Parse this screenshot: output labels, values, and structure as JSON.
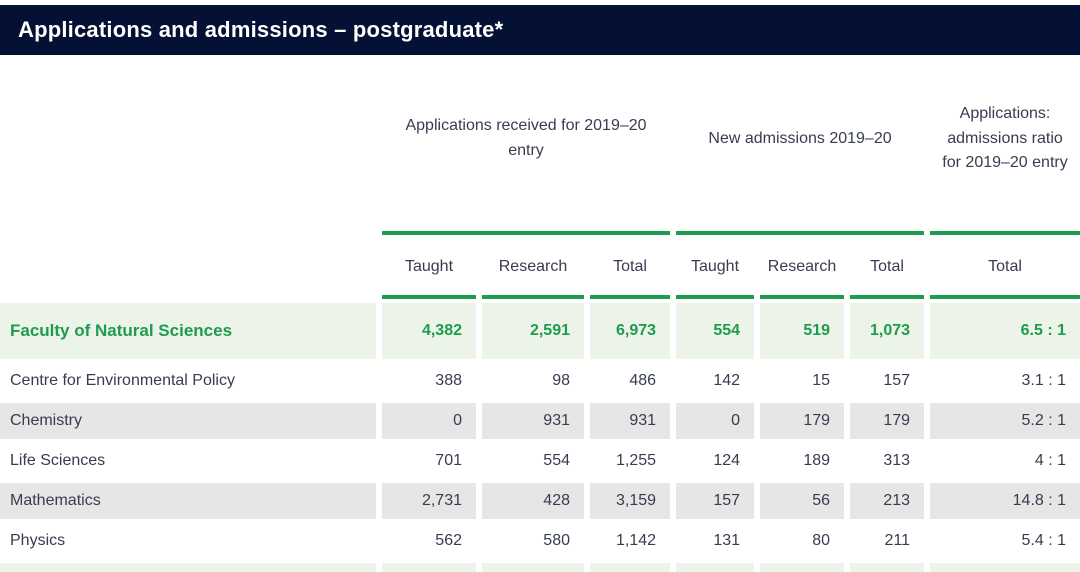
{
  "title": "Applications and admissions – postgraduate*",
  "colors": {
    "navy": "#051134",
    "green": "#1e9c4d",
    "light_green": "#ecf3e9",
    "gray_bg": "#e6e6e6",
    "text_dark": "#373d4f",
    "title_text": "#ffffff"
  },
  "table": {
    "col_groups": [
      {
        "label": "Applications received for 2019–20 entry",
        "span": 3
      },
      {
        "label": "New admissions 2019–20",
        "span": 3
      },
      {
        "label": "Applications: admissions ratio for 2019–20 entry",
        "span": 1
      }
    ],
    "sub_headers": [
      "Taught",
      "Research",
      "Total",
      "Taught",
      "Research",
      "Total",
      "Total"
    ],
    "rows": [
      {
        "label": "Faculty of Natural Sciences",
        "highlight": true,
        "values": [
          "4,382",
          "2,591",
          "6,973",
          "554",
          "519",
          "1,073",
          "6.5 : 1"
        ]
      },
      {
        "label": "Centre for Environmental Policy",
        "highlight": false,
        "values": [
          "388",
          "98",
          "486",
          "142",
          "15",
          "157",
          "3.1 : 1"
        ]
      },
      {
        "label": "Chemistry",
        "highlight": false,
        "values": [
          "0",
          "931",
          "931",
          "0",
          "179",
          "179",
          "5.2 : 1"
        ]
      },
      {
        "label": "Life Sciences",
        "highlight": false,
        "values": [
          "701",
          "554",
          "1,255",
          "124",
          "189",
          "313",
          "4 : 1"
        ]
      },
      {
        "label": "Mathematics",
        "highlight": false,
        "values": [
          "2,731",
          "428",
          "3,159",
          "157",
          "56",
          "213",
          "14.8 : 1"
        ]
      },
      {
        "label": "Physics",
        "highlight": false,
        "values": [
          "562",
          "580",
          "1,142",
          "131",
          "80",
          "211",
          "5.4 : 1"
        ]
      }
    ]
  }
}
